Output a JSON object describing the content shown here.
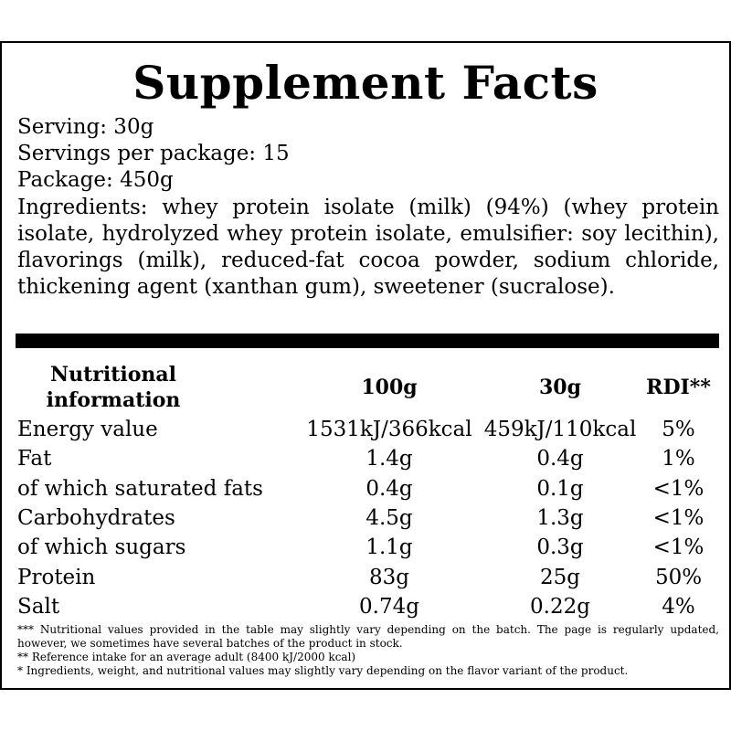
{
  "title": "Supplement Facts",
  "info": {
    "serving": "Serving: 30g",
    "servings_per_package": "Servings per package: 15",
    "package": "Package: 450g",
    "ingredients": "Ingredients: whey protein isolate (milk) (94%) (whey protein isolate, hydrolyzed whey protein isolate, emulsifier: soy lecithin), flavorings (milk), reduced-fat cocoa powder, sodium chloride, thickening agent (xanthan gum), sweetener (sucralose)."
  },
  "table": {
    "headers": [
      "Nutritional information",
      "100g",
      "30g",
      "RDI**"
    ],
    "rows": [
      {
        "name": "Energy value",
        "per100g": "1531kJ/366kcal",
        "per30g": "459kJ/110kcal",
        "rdi": "5%"
      },
      {
        "name": "Fat",
        "per100g": "1.4g",
        "per30g": "0.4g",
        "rdi": "1%"
      },
      {
        "name": "of which saturated fats",
        "per100g": "0.4g",
        "per30g": "0.1g",
        "rdi": "<1%"
      },
      {
        "name": "Carbohydrates",
        "per100g": "4.5g",
        "per30g": "1.3g",
        "rdi": "<1%"
      },
      {
        "name": "of which sugars",
        "per100g": "1.1g",
        "per30g": "0.3g",
        "rdi": "<1%"
      },
      {
        "name": "Protein",
        "per100g": "83g",
        "per30g": "25g",
        "rdi": "50%"
      },
      {
        "name": "Salt",
        "per100g": "0.74g",
        "per30g": "0.22g",
        "rdi": "4%"
      }
    ]
  },
  "footnotes": [
    "*** Nutritional values provided in the table may slightly vary depending on the batch. The page is regularly updated, however, we sometimes have several batches of the product in stock.",
    "** Reference intake for an average adult (8400 kJ/2000 kcal)",
    "* Ingredients, weight, and nutritional values may slightly vary depending on the flavor variant of the product."
  ]
}
